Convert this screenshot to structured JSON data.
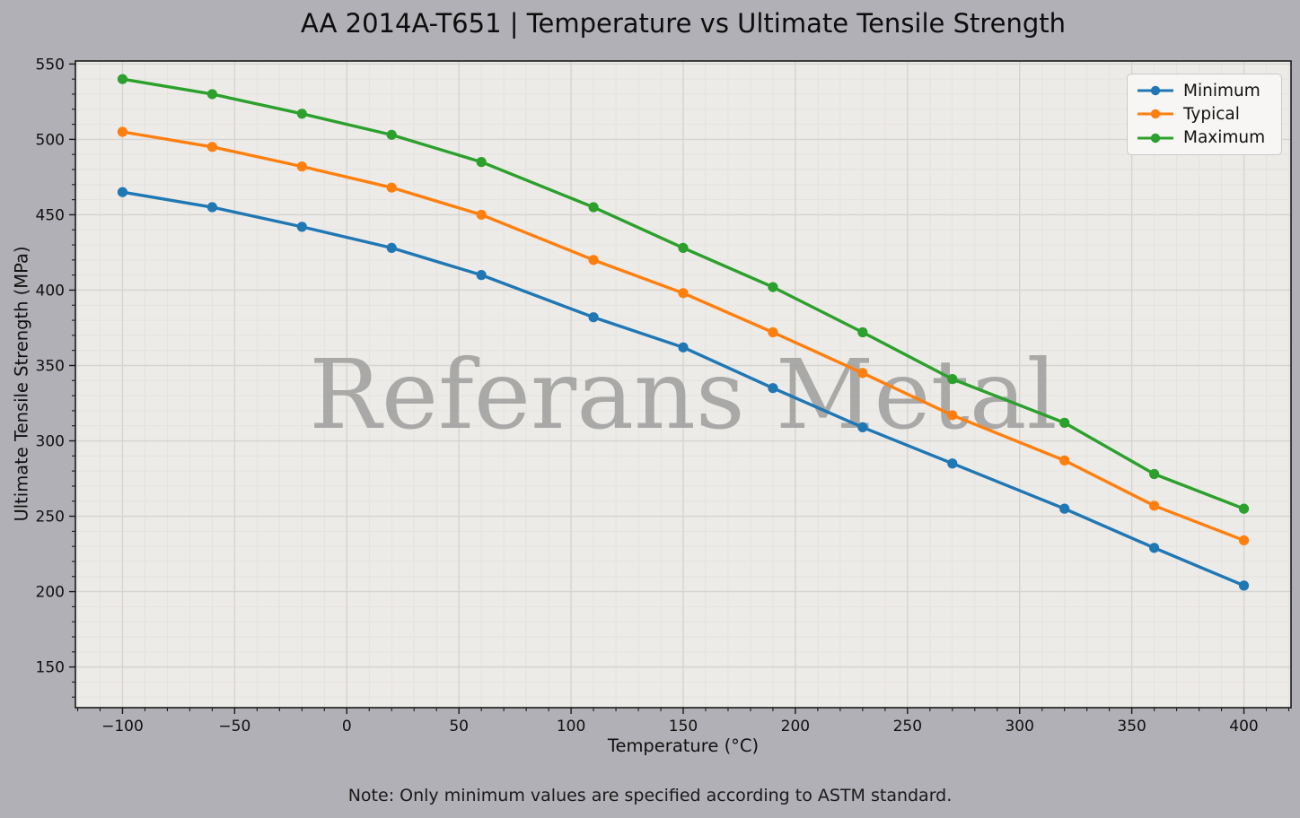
{
  "title": "AA 2014A-T651 | Temperature vs Ultimate Tensile Strength",
  "note": "Note: Only minimum values are specified according to ASTM standard.",
  "watermark": "Referans Metal",
  "chart_data": {
    "type": "line",
    "title": "AA 2014A-T651 | Temperature vs Ultimate Tensile Strength",
    "xlabel": "Temperature (°C)",
    "ylabel": "Ultimate Tensile Strength (MPa)",
    "x": [
      -100,
      -60,
      -20,
      20,
      60,
      110,
      150,
      190,
      230,
      270,
      320,
      360,
      400
    ],
    "series": [
      {
        "name": "Minimum",
        "color": "#1f77b4",
        "values": [
          465,
          455,
          442,
          428,
          410,
          382,
          362,
          335,
          309,
          285,
          255,
          229,
          204
        ]
      },
      {
        "name": "Typical",
        "color": "#ff7f0e",
        "values": [
          505,
          495,
          482,
          468,
          450,
          420,
          398,
          372,
          345,
          317,
          287,
          257,
          234
        ]
      },
      {
        "name": "Maximum",
        "color": "#2ca02c",
        "values": [
          540,
          530,
          517,
          503,
          485,
          455,
          428,
          402,
          372,
          341,
          312,
          278,
          255
        ]
      }
    ],
    "xticks": [
      -100,
      -50,
      0,
      50,
      100,
      150,
      200,
      250,
      300,
      350,
      400
    ],
    "yticks": [
      150,
      200,
      250,
      300,
      350,
      400,
      450,
      500,
      550
    ],
    "xlim": [
      -121,
      421
    ],
    "ylim": [
      123,
      552
    ],
    "minor_step_x": 10,
    "minor_step_y": 10,
    "grid": "major+minor",
    "legend_position": "upper right",
    "marker": "circle"
  },
  "colors": {
    "figure_bg": "#b0b0b6",
    "axes_bg": "#edebe8",
    "grid_major": "#d6d4d0",
    "grid_minor": "#e4e2de",
    "spine": "#1a1a1a",
    "watermark": "#a0a0a0"
  }
}
